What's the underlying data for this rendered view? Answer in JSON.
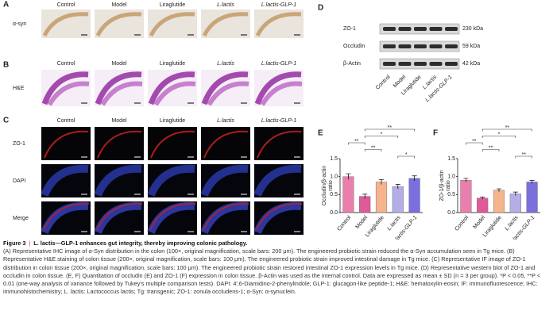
{
  "panels": {
    "A": {
      "label": "A",
      "columns": [
        "Control",
        "Model",
        "Liraglutide",
        "L.lactis",
        "L.lactis-GLP-1"
      ],
      "rows": [
        "α-syn"
      ]
    },
    "B": {
      "label": "B",
      "columns": [
        "Control",
        "Model",
        "Liraglutide",
        "L.lactis",
        "L.lactis-GLP-1"
      ],
      "rows": [
        "H&E"
      ]
    },
    "C": {
      "label": "C",
      "columns": [
        "Control",
        "Model",
        "Liraglutide",
        "L.lactis",
        "L.lactis-GLP-1"
      ],
      "rows": [
        "ZO-1",
        "DAPI",
        "Merge"
      ]
    },
    "D": {
      "label": "D",
      "bands": [
        {
          "name": "ZO-1",
          "size": "230 kDa"
        },
        {
          "name": "Occludin",
          "size": "59 kDa"
        },
        {
          "name": "β-Actin",
          "size": "42 kDa"
        }
      ],
      "lanes": [
        "Control",
        "Model",
        "Liraglutide",
        "L.lactis",
        "L.lactis-GLP-1"
      ]
    }
  },
  "chart_data": [
    {
      "type": "bar",
      "label": "E",
      "ylabel": [
        "Occludin/β-actin",
        "ratio"
      ],
      "categories": [
        "Control",
        "Model",
        "Liraglutide",
        "L.lactis",
        "L.lactis-GLP-1"
      ],
      "values": [
        1.0,
        0.45,
        0.85,
        0.72,
        0.95
      ],
      "errors": [
        0.08,
        0.06,
        0.07,
        0.06,
        0.07
      ],
      "colors": [
        "#ea7fae",
        "#df5a98",
        "#f6b48c",
        "#b3aee6",
        "#7a6fdc"
      ],
      "ylim": [
        0,
        1.5
      ],
      "yticks": [
        {
          "value": 0,
          "label": "0.0"
        },
        {
          "value": 0.5,
          "label": "0.5"
        },
        {
          "value": 1,
          "label": "1.0"
        },
        {
          "value": 1.5,
          "label": "1.5"
        }
      ],
      "comparisons": [
        {
          "groups": [
            "Model",
            "L.lactis-GLP-1"
          ],
          "label": "**"
        },
        {
          "groups": [
            "Model",
            "L.lactis"
          ],
          "label": "*"
        },
        {
          "groups": [
            "Control",
            "Model"
          ],
          "label": "**"
        },
        {
          "groups": [
            "Model",
            "Liraglutide"
          ],
          "label": "**"
        },
        {
          "groups": [
            "L.lactis",
            "L.lactis-GLP-1"
          ],
          "label": "*"
        }
      ]
    },
    {
      "type": "bar",
      "label": "F",
      "ylabel": [
        "ZO-1/β-actin",
        "ratio"
      ],
      "categories": [
        "Control",
        "Model",
        "Liraglutide",
        "L.lactis",
        "L.lactis-GLP-1"
      ],
      "values": [
        0.9,
        0.4,
        0.62,
        0.52,
        0.85
      ],
      "errors": [
        0.05,
        0.03,
        0.04,
        0.05,
        0.04
      ],
      "colors": [
        "#ea7fae",
        "#df5a98",
        "#f6b48c",
        "#b3aee6",
        "#7a6fdc"
      ],
      "ylim": [
        0,
        1.5
      ],
      "yticks": [
        {
          "value": 0,
          "label": "0.0"
        },
        {
          "value": 0.5,
          "label": "0.5"
        },
        {
          "value": 1,
          "label": "1.0"
        },
        {
          "value": 1.5,
          "label": "1.5"
        }
      ],
      "comparisons": [
        {
          "groups": [
            "Model",
            "L.lactis-GLP-1"
          ],
          "label": "**"
        },
        {
          "groups": [
            "Model",
            "L.lactis"
          ],
          "label": "*"
        },
        {
          "groups": [
            "Control",
            "Model"
          ],
          "label": "**"
        },
        {
          "groups": [
            "Model",
            "Liraglutide"
          ],
          "label": "**"
        },
        {
          "groups": [
            "L.lactis",
            "L.lactis-GLP-1"
          ],
          "label": "**"
        }
      ]
    }
  ],
  "caption": {
    "figure": "Figure 3",
    "separator": "|",
    "title": "L. lactis—GLP-1 enhances gut integrity, thereby improving colonic pathology.",
    "body": "(A) Representative IHC image of α-Syn distribution in the colon (100×, original magnification, scale bars: 200 μm). The engineered probiotic strain reduced the α-Syn accumulation seen in Tg mice. (B) Representative H&E staining of colon tissue (200×, original magnification, scale bars: 100 μm). The engineered probiotic strain improved intestinal damage in Tg mice. (C) Representative IF image of ZO-1 distribution in colon tissue (200×, original magnification, scale bars: 100 μm). The engineered probiotic strain restored intestinal ZO-1 expression levels in Tg mice. (D) Representative western blot of ZO-1 and occludin in colon tissue. (E, F) Quantitation of occludin (E) and ZO-1 (F) expression in colon tissue. β-Actin was used as the internal control. Data are expressed as mean ± SD (n = 3 per group). *P < 0.05, **P < 0.01 (one-way analysis of variance followed by Tukey's multiple comparison tests). DAPI: 4′,6-Diamidino-2-phenylindole; GLP-1: glucagon-like peptide-1; H&E: hematoxylin-eosin; IF: immunofluorescence; IHC: immunohistochemistry; L. lactis: Lactococcus lactis; Tg: transgenic; ZO-1: zonula occludens-1; α-Syn: α-synuclein."
  }
}
